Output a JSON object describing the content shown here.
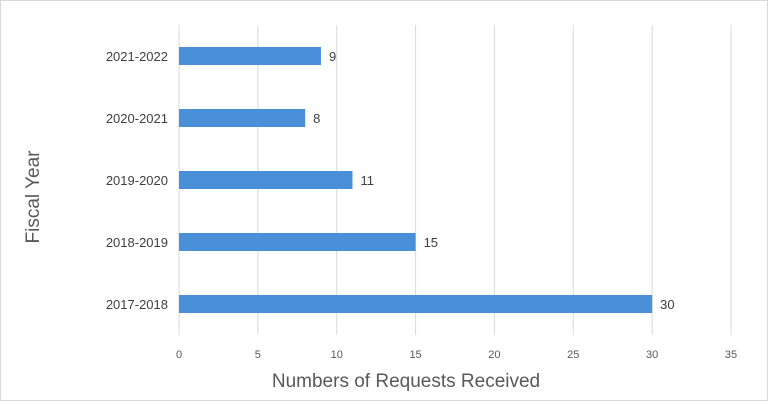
{
  "chart_data": {
    "type": "bar",
    "orientation": "horizontal",
    "title": "",
    "xlabel": "Numbers of Requests Received",
    "ylabel": "Fiscal Year",
    "categories": [
      "2021-2022",
      "2020-2021",
      "2019-2020",
      "2018-2019",
      "2017-2018"
    ],
    "values": [
      9,
      8,
      11,
      15,
      30
    ],
    "data_labels": [
      "9",
      "8",
      "11",
      "15",
      "30"
    ],
    "xlim": [
      0,
      35
    ],
    "x_ticks": [
      "0",
      "5",
      "10",
      "15",
      "20",
      "25",
      "30",
      "35"
    ],
    "grid": "vertical",
    "bar_color": "#4a90d9",
    "legend": "none"
  }
}
